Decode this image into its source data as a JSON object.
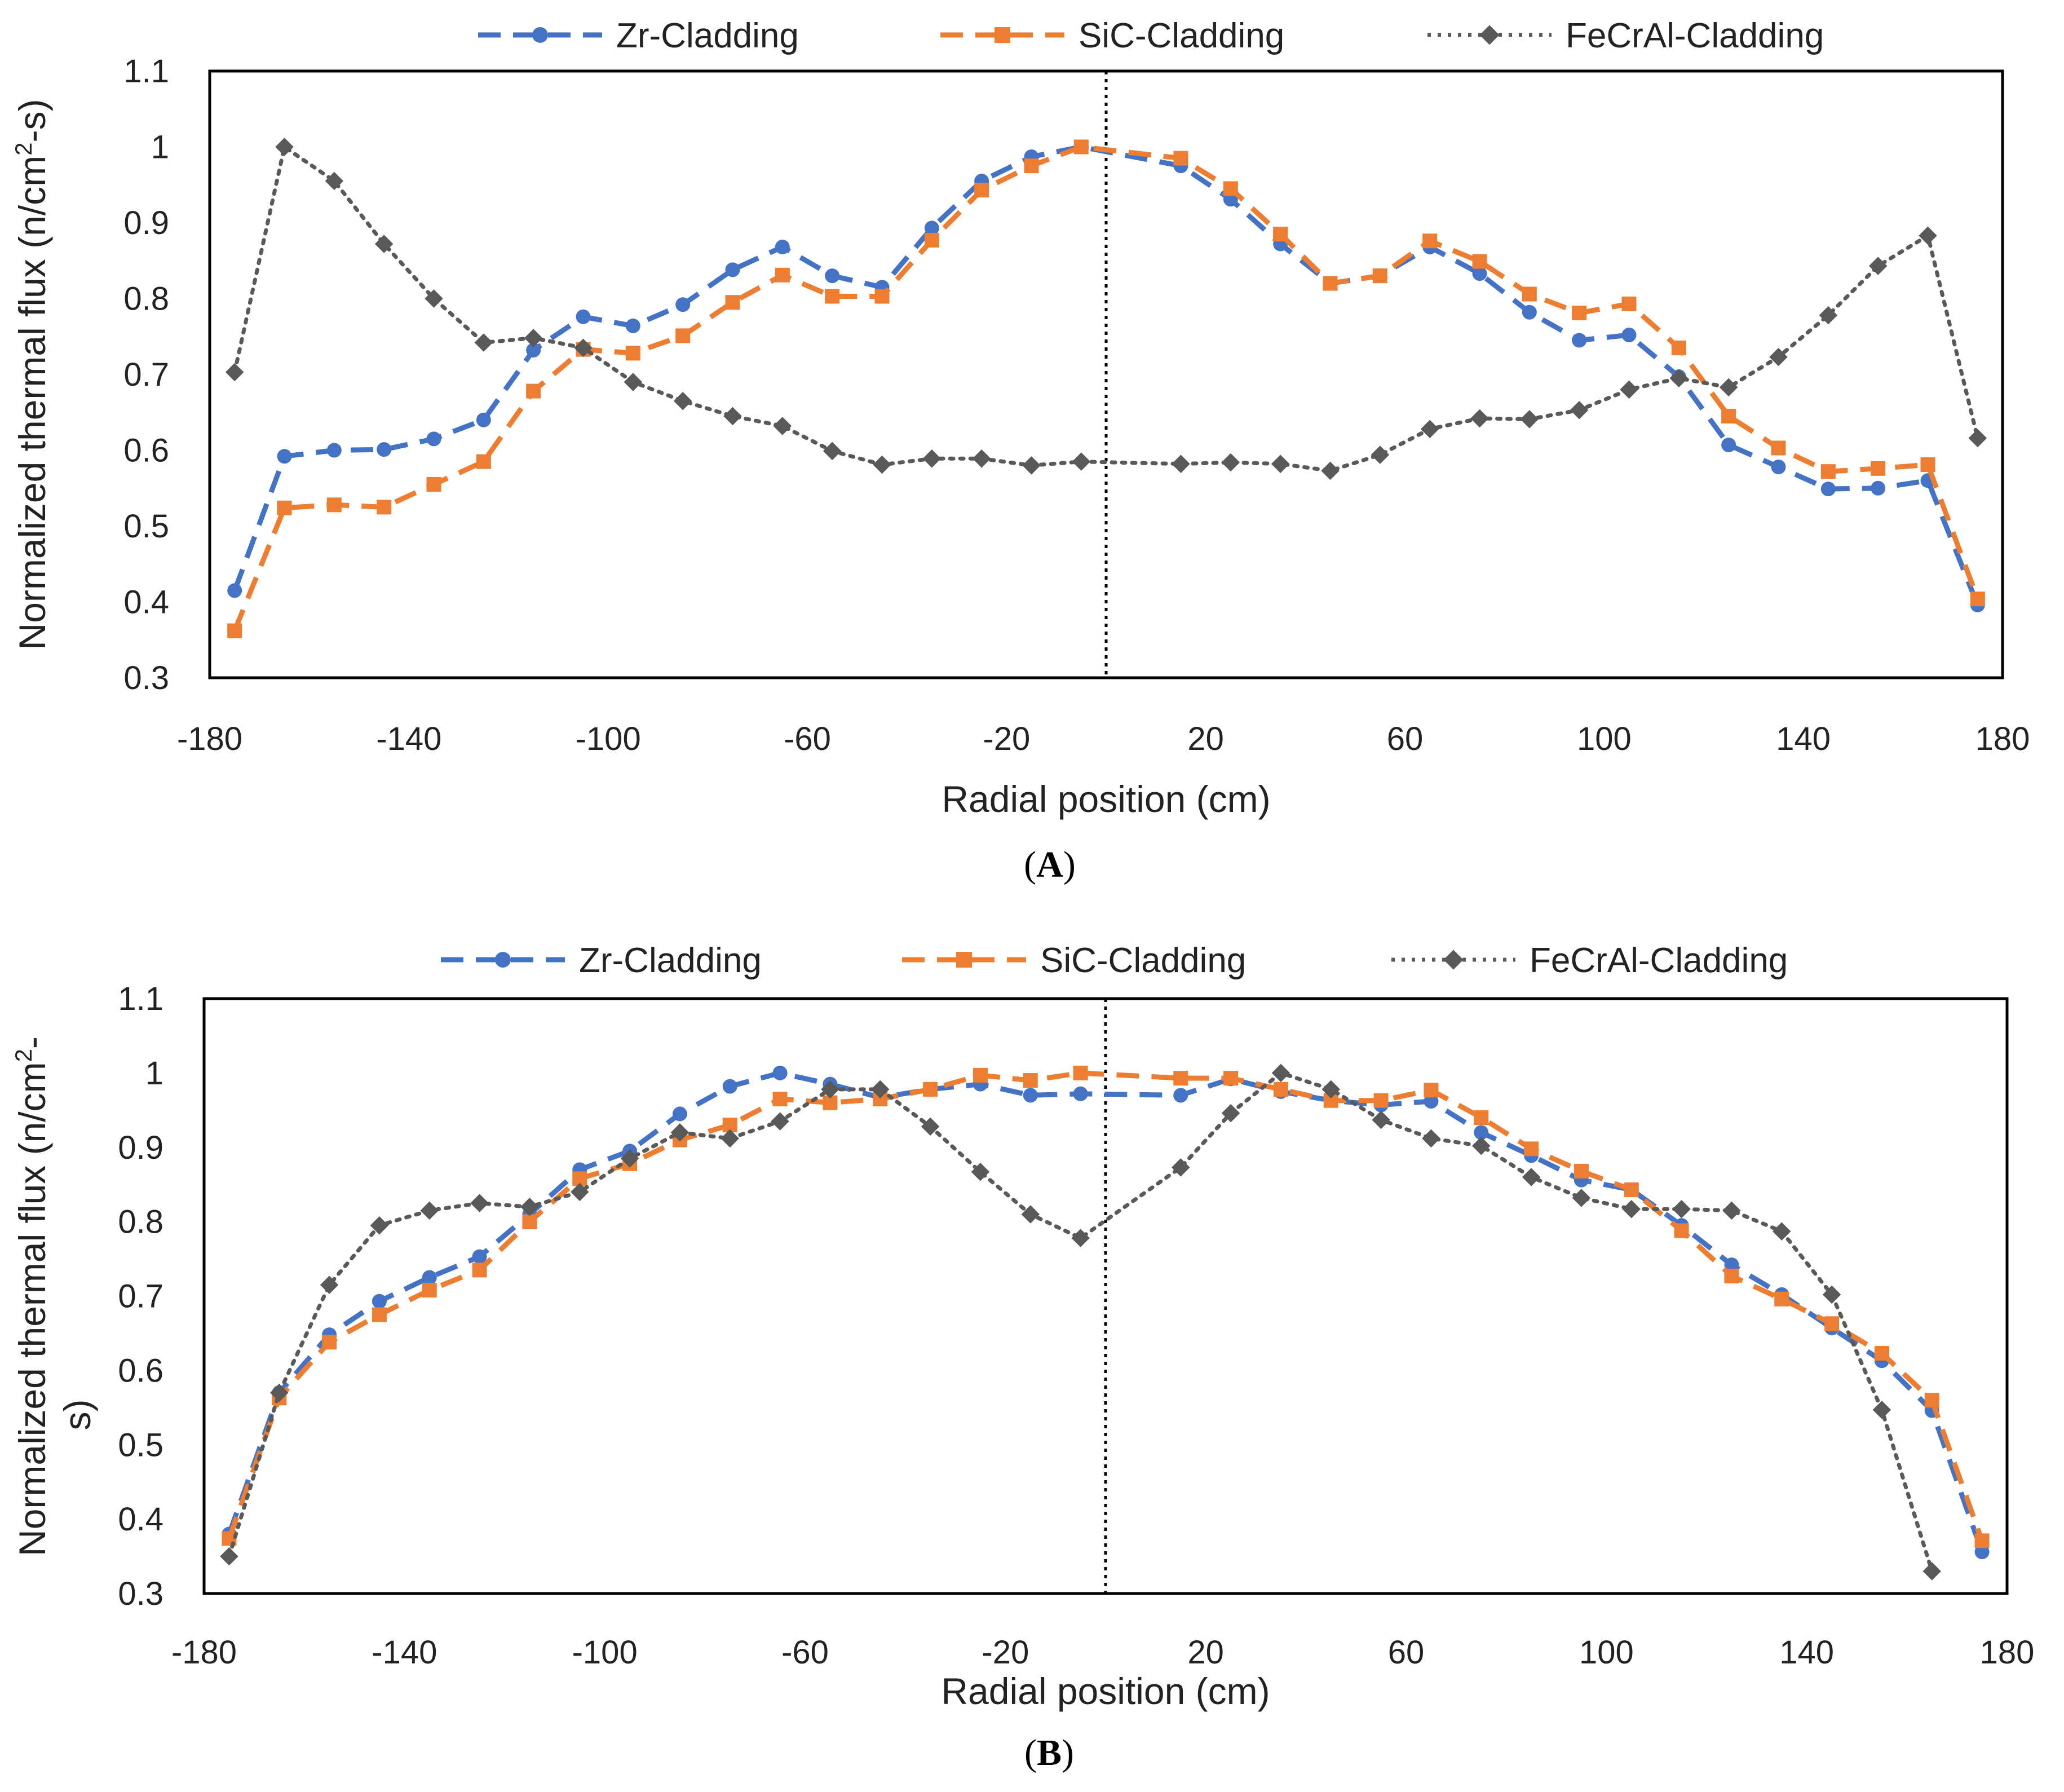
{
  "colors": {
    "zr": "#4472C4",
    "sic": "#ED7D31",
    "fecral": "#595959",
    "axis": "#000000",
    "text": "#222222"
  },
  "chart_data": [
    {
      "type": "line",
      "panel_label": "A",
      "title": "",
      "xlabel": "Radial position (cm)",
      "ylabel": "Normalized thermal flux (n/cm²-s)",
      "ylabel_parts": [
        "Normalized thermal flux (n/cm",
        "2",
        "-s)"
      ],
      "xlim": [
        -180,
        180
      ],
      "ylim": [
        0.3,
        1.1
      ],
      "x_ticks": [
        "-180",
        "-140",
        "-100",
        "-60",
        "-20",
        "20",
        "60",
        "100",
        "140",
        "180"
      ],
      "y_ticks": [
        "0.3",
        "0.4",
        "0.5",
        "0.6",
        "0.7",
        "0.8",
        "0.9",
        "1",
        "1.1"
      ],
      "grid": false,
      "legend_position": "top",
      "center_line_x": 0,
      "x": [
        -175,
        -165,
        -155,
        -145,
        -135,
        -125,
        -115,
        -105,
        -95,
        -85,
        -75,
        -65,
        -55,
        -45,
        -35,
        -25,
        -15,
        -5,
        15,
        25,
        35,
        45,
        55,
        65,
        75,
        85,
        95,
        105,
        115,
        125,
        135,
        145,
        155,
        165,
        175
      ],
      "series": [
        {
          "name": "Zr-Cladding",
          "style": "dashed",
          "marker": "circle",
          "values": [
            0.415,
            0.592,
            0.6,
            0.601,
            0.615,
            0.64,
            0.732,
            0.776,
            0.764,
            0.792,
            0.838,
            0.868,
            0.83,
            0.815,
            0.893,
            0.955,
            0.987,
            1.0,
            0.975,
            0.931,
            0.872,
            0.82,
            0.83,
            0.868,
            0.833,
            0.782,
            0.745,
            0.752,
            0.697,
            0.607,
            0.578,
            0.549,
            0.55,
            0.56,
            0.396
          ]
        },
        {
          "name": "SiC-Cladding",
          "style": "dashed",
          "marker": "square",
          "values": [
            0.362,
            0.524,
            0.528,
            0.525,
            0.555,
            0.585,
            0.678,
            0.733,
            0.728,
            0.751,
            0.795,
            0.831,
            0.803,
            0.803,
            0.877,
            0.943,
            0.975,
            1.0,
            0.985,
            0.945,
            0.885,
            0.82,
            0.83,
            0.876,
            0.849,
            0.806,
            0.781,
            0.793,
            0.735,
            0.645,
            0.603,
            0.572,
            0.576,
            0.581,
            0.404
          ]
        },
        {
          "name": "FeCrAl-Cladding",
          "style": "dotted",
          "marker": "diamond",
          "values": [
            0.703,
            1.0,
            0.955,
            0.872,
            0.8,
            0.742,
            0.748,
            0.735,
            0.69,
            0.665,
            0.645,
            0.632,
            0.599,
            0.581,
            0.589,
            0.589,
            0.58,
            0.585,
            0.582,
            0.584,
            0.582,
            0.573,
            0.594,
            0.628,
            0.642,
            0.641,
            0.653,
            0.68,
            0.695,
            0.683,
            0.723,
            0.778,
            0.843,
            0.883,
            0.616
          ]
        }
      ]
    },
    {
      "type": "line",
      "panel_label": "B",
      "title": "",
      "xlabel": "Radial position (cm)",
      "ylabel": "Normalized thermal flux (n/cm²-s)",
      "ylabel_parts": [
        "Normalized thermal flux (n/cm",
        "2",
        "-",
        "s)"
      ],
      "xlim": [
        -180,
        180
      ],
      "ylim": [
        0.3,
        1.1
      ],
      "x_ticks": [
        "-180",
        "-140",
        "-100",
        "-60",
        "-20",
        "20",
        "60",
        "100",
        "140",
        "180"
      ],
      "y_ticks": [
        "0.3",
        "0.4",
        "0.5",
        "0.6",
        "0.7",
        "0.8",
        "0.9",
        "1",
        "1.1"
      ],
      "grid": false,
      "legend_position": "top",
      "center_line_x": 0,
      "x": [
        -175,
        -165,
        -155,
        -145,
        -135,
        -125,
        -115,
        -105,
        -95,
        -85,
        -75,
        -65,
        -55,
        -45,
        -35,
        -25,
        -15,
        -5,
        15,
        25,
        35,
        45,
        55,
        65,
        75,
        85,
        95,
        105,
        115,
        125,
        135,
        145,
        155,
        165,
        175
      ],
      "series": [
        {
          "name": "Zr-Cladding",
          "style": "dashed",
          "marker": "circle",
          "values": [
            0.38,
            0.57,
            0.648,
            0.693,
            0.725,
            0.753,
            0.81,
            0.87,
            0.895,
            0.945,
            0.982,
            1.0,
            0.985,
            0.967,
            0.978,
            0.985,
            0.97,
            0.972,
            0.97,
            0.992,
            0.975,
            0.963,
            0.957,
            0.962,
            0.92,
            0.889,
            0.856,
            0.843,
            0.795,
            0.742,
            0.702,
            0.657,
            0.613,
            0.546,
            0.356
          ]
        },
        {
          "name": "SiC-Cladding",
          "style": "dashed",
          "marker": "square",
          "values": [
            0.374,
            0.563,
            0.638,
            0.675,
            0.708,
            0.735,
            0.8,
            0.858,
            0.878,
            0.91,
            0.93,
            0.965,
            0.96,
            0.965,
            0.978,
            0.997,
            0.99,
            1.0,
            0.993,
            0.993,
            0.978,
            0.963,
            0.963,
            0.977,
            0.94,
            0.898,
            0.868,
            0.843,
            0.788,
            0.727,
            0.696,
            0.663,
            0.623,
            0.56,
            0.371
          ]
        },
        {
          "name": "FeCrAl-Cladding",
          "style": "dotted",
          "marker": "diamond",
          "values": [
            0.35,
            0.57,
            0.715,
            0.795,
            0.815,
            0.825,
            0.82,
            0.84,
            0.885,
            0.92,
            0.912,
            0.935,
            0.978,
            0.978,
            0.928,
            0.867,
            0.81,
            0.778,
            0.873,
            0.946,
            1.0,
            0.978,
            0.937,
            0.912,
            0.902,
            0.86,
            0.832,
            0.817,
            0.817,
            0.815,
            0.787,
            0.702,
            0.547,
            0.33,
            null
          ]
        }
      ]
    }
  ]
}
